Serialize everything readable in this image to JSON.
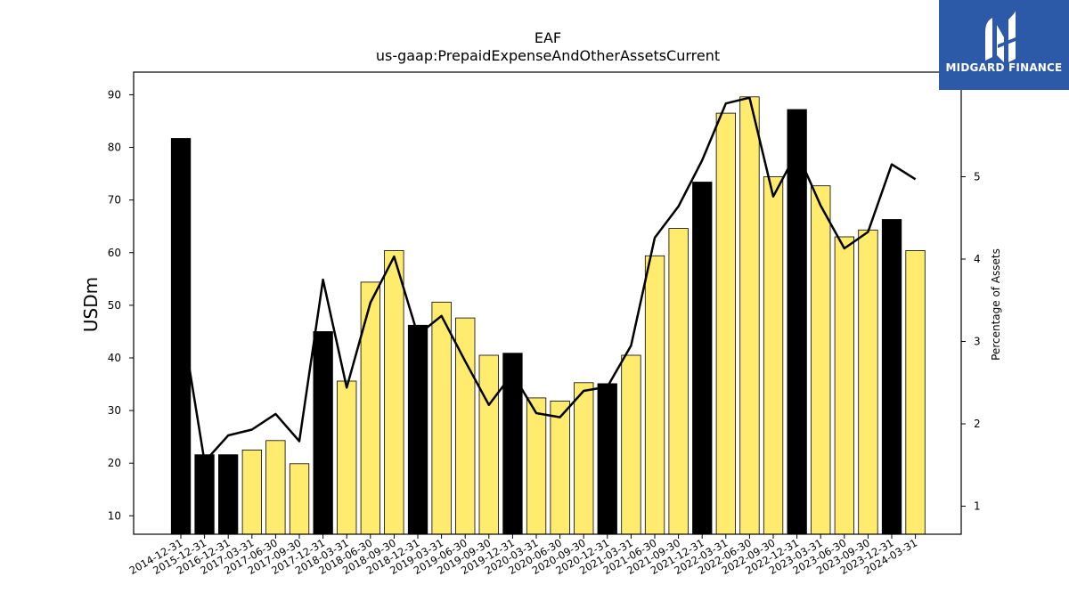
{
  "chart_data": {
    "type": "bar",
    "title": "EAF",
    "subtitle": "us-gaap:PrepaidExpenseAndOtherAssetsCurrent",
    "ylabel": "USDm",
    "y2label": "Percentage of Assets",
    "ylim": [
      6.5,
      94.3
    ],
    "y2lim": [
      0.66,
      6.27
    ],
    "yticks": [
      10,
      20,
      30,
      40,
      50,
      60,
      70,
      80,
      90
    ],
    "y2ticks": [
      1,
      2,
      3,
      4,
      5
    ],
    "categories": [
      "2014-12-31",
      "2015-12-31",
      "2016-12-31",
      "2017-03-31",
      "2017-06-30",
      "2017-09-30",
      "2017-12-31",
      "2018-03-31",
      "2018-06-30",
      "2018-09-30",
      "2018-12-31",
      "2019-03-31",
      "2019-06-30",
      "2019-09-30",
      "2019-12-31",
      "2020-03-31",
      "2020-06-30",
      "2020-09-30",
      "2020-12-31",
      "2021-03-31",
      "2021-06-30",
      "2021-09-30",
      "2021-12-31",
      "2022-03-31",
      "2022-06-30",
      "2022-09-30",
      "2022-12-31",
      "2023-03-31",
      "2023-06-30",
      "2023-09-30",
      "2023-12-31",
      "2024-03-31"
    ],
    "series": [
      {
        "type": "bar",
        "values": [
          81.7,
          21.6,
          21.6,
          22.5,
          24.3,
          19.9,
          45.0,
          35.6,
          54.4,
          60.4,
          46.2,
          50.6,
          47.6,
          40.5,
          40.9,
          32.4,
          31.8,
          35.3,
          35.1,
          40.5,
          59.4,
          64.6,
          73.4,
          86.5,
          89.6,
          74.4,
          87.2,
          72.7,
          63.0,
          64.3,
          66.3,
          60.4
        ],
        "annual": [
          true,
          true,
          true,
          false,
          false,
          false,
          true,
          false,
          false,
          false,
          true,
          false,
          false,
          false,
          true,
          false,
          false,
          false,
          true,
          false,
          false,
          false,
          true,
          false,
          false,
          false,
          true,
          false,
          false,
          false,
          true,
          false
        ]
      },
      {
        "type": "line",
        "axis": "y2",
        "values": [
          3.32,
          1.54,
          1.86,
          1.93,
          2.12,
          1.79,
          3.75,
          2.44,
          3.47,
          4.03,
          3.08,
          3.31,
          2.76,
          2.23,
          2.61,
          2.13,
          2.08,
          2.4,
          2.45,
          2.95,
          4.26,
          4.64,
          5.2,
          5.89,
          5.96,
          4.76,
          5.3,
          4.65,
          4.13,
          4.33,
          5.15,
          4.97
        ]
      }
    ],
    "colors": {
      "annual_bar": "#000000",
      "quarter_bar": "#ffec6e",
      "line": "#000000"
    },
    "grid": false,
    "legend": "none"
  },
  "logo": {
    "brand": "MIDGARD FINANCE"
  }
}
